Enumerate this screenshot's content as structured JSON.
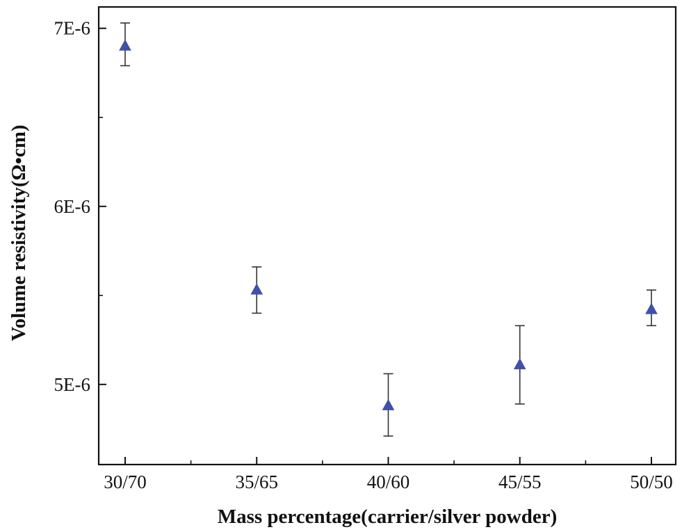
{
  "chart_data": {
    "type": "scatter",
    "title": "",
    "xlabel": "Mass percentage(carrier/silver powder)",
    "ylabel": "Volume resistivity(Ω•cm)",
    "categories": [
      "30/70",
      "35/65",
      "40/60",
      "45/55",
      "50/50"
    ],
    "y_tick_labels": [
      "5E-6",
      "6E-6",
      "7E-6"
    ],
    "y_tick_values": [
      5e-06,
      6e-06,
      7e-06
    ],
    "ylim": [
      4.55e-06,
      7.12e-06
    ],
    "grid": false,
    "marker": "triangle",
    "marker_color": "#3f51a8",
    "errorbar_color": "#333333",
    "series": [
      {
        "name": "Volume resistivity",
        "values": [
          6.9e-06,
          5.53e-06,
          4.88e-06,
          5.11e-06,
          5.42e-06
        ],
        "error_upper": [
          7.03e-06,
          5.66e-06,
          5.06e-06,
          5.33e-06,
          5.53e-06
        ],
        "error_lower": [
          6.79e-06,
          5.4e-06,
          4.71e-06,
          4.89e-06,
          5.33e-06
        ]
      }
    ]
  }
}
